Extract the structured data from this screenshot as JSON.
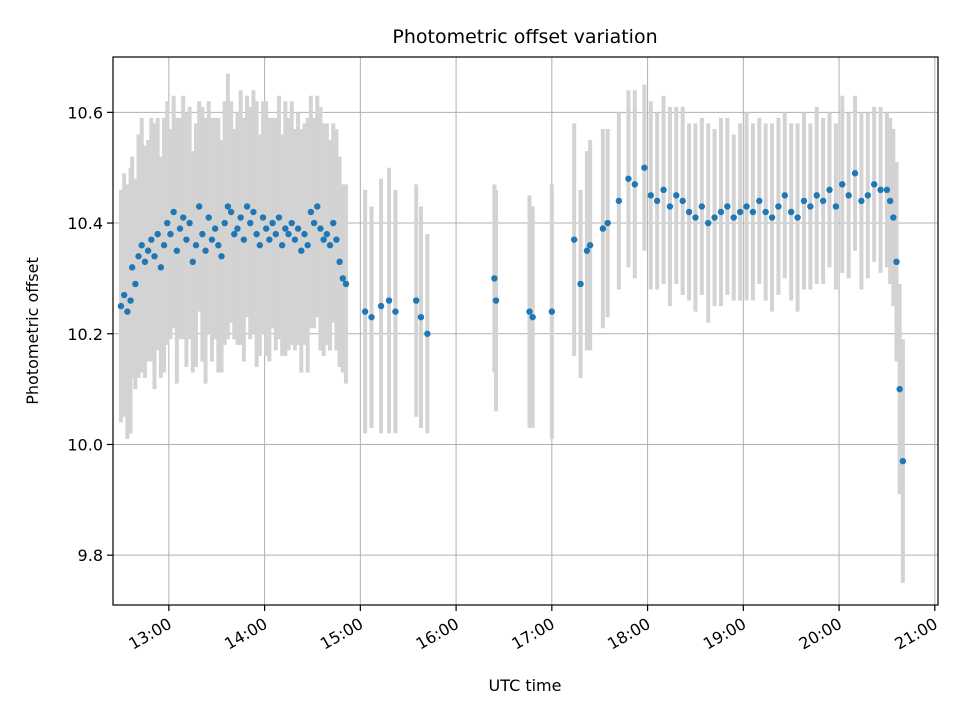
{
  "chart_data": {
    "type": "scatter",
    "title": "Photometric offset variation",
    "xlabel": "UTC time",
    "ylabel": "Photometric offset",
    "xlim": [
      "12:25",
      "21:02"
    ],
    "ylim": [
      9.71,
      10.7
    ],
    "grid": true,
    "x_ticks": [
      "13:00",
      "14:00",
      "15:00",
      "16:00",
      "17:00",
      "18:00",
      "19:00",
      "20:00",
      "21:00"
    ],
    "y_ticks": [
      9.8,
      10.0,
      10.2,
      10.4,
      10.6
    ],
    "colors": {
      "points": "#1f77b4",
      "error_bars": "#d3d3d3",
      "grid": "#b0b0b0"
    },
    "series": [
      {
        "x": [
          "12:30",
          "12:32",
          "12:34",
          "12:36",
          "12:37",
          "12:39",
          "12:41",
          "12:43",
          "12:45",
          "12:47",
          "12:49",
          "12:51",
          "12:53",
          "12:55",
          "12:57",
          "12:59",
          "13:01",
          "13:03",
          "13:05",
          "13:07",
          "13:09",
          "13:11",
          "13:13",
          "13:15",
          "13:17",
          "13:19",
          "13:21",
          "13:23",
          "13:25",
          "13:27",
          "13:29",
          "13:31",
          "13:33",
          "13:35",
          "13:37",
          "13:39",
          "13:41",
          "13:43",
          "13:45",
          "13:47",
          "13:49",
          "13:51",
          "13:53",
          "13:55",
          "13:57",
          "13:59",
          "14:01",
          "14:03",
          "14:05",
          "14:07",
          "14:09",
          "14:11",
          "14:13",
          "14:15",
          "14:17",
          "14:19",
          "14:21",
          "14:23",
          "14:25",
          "14:27",
          "14:29",
          "14:31",
          "14:33",
          "14:35",
          "14:37",
          "14:39",
          "14:41",
          "14:43",
          "14:45",
          "14:47",
          "14:49",
          "14:51",
          "15:03",
          "15:07",
          "15:13",
          "15:18",
          "15:22",
          "15:35",
          "15:38",
          "15:42",
          "16:24",
          "16:25",
          "16:46",
          "16:48",
          "17:00",
          "17:14",
          "17:18",
          "17:22",
          "17:24",
          "17:32",
          "17:35",
          "17:42",
          "17:48",
          "17:52",
          "17:58",
          "18:02",
          "18:06",
          "18:10",
          "18:14",
          "18:18",
          "18:22",
          "18:26",
          "18:30",
          "18:34",
          "18:38",
          "18:42",
          "18:46",
          "18:50",
          "18:54",
          "18:58",
          "19:02",
          "19:06",
          "19:10",
          "19:14",
          "19:18",
          "19:22",
          "19:26",
          "19:30",
          "19:34",
          "19:38",
          "19:42",
          "19:46",
          "19:50",
          "19:54",
          "19:58",
          "20:02",
          "20:06",
          "20:10",
          "20:14",
          "20:18",
          "20:22",
          "20:26",
          "20:30",
          "20:32",
          "20:34",
          "20:36",
          "20:38",
          "20:40"
        ],
        "y": [
          10.25,
          10.27,
          10.24,
          10.26,
          10.32,
          10.29,
          10.34,
          10.36,
          10.33,
          10.35,
          10.37,
          10.34,
          10.38,
          10.32,
          10.36,
          10.4,
          10.38,
          10.42,
          10.35,
          10.39,
          10.41,
          10.37,
          10.4,
          10.33,
          10.36,
          10.43,
          10.38,
          10.35,
          10.41,
          10.37,
          10.39,
          10.36,
          10.34,
          10.4,
          10.43,
          10.42,
          10.38,
          10.39,
          10.41,
          10.37,
          10.43,
          10.4,
          10.42,
          10.38,
          10.36,
          10.41,
          10.39,
          10.37,
          10.4,
          10.38,
          10.41,
          10.36,
          10.39,
          10.38,
          10.4,
          10.37,
          10.39,
          10.35,
          10.38,
          10.36,
          10.42,
          10.4,
          10.43,
          10.39,
          10.37,
          10.38,
          10.36,
          10.4,
          10.37,
          10.33,
          10.3,
          10.29,
          10.24,
          10.23,
          10.25,
          10.26,
          10.24,
          10.26,
          10.23,
          10.2,
          10.3,
          10.26,
          10.24,
          10.23,
          10.24,
          10.37,
          10.29,
          10.35,
          10.36,
          10.39,
          10.4,
          10.44,
          10.48,
          10.47,
          10.5,
          10.45,
          10.44,
          10.46,
          10.43,
          10.45,
          10.44,
          10.42,
          10.41,
          10.43,
          10.4,
          10.41,
          10.42,
          10.43,
          10.41,
          10.42,
          10.43,
          10.42,
          10.44,
          10.42,
          10.41,
          10.43,
          10.45,
          10.42,
          10.41,
          10.44,
          10.43,
          10.45,
          10.44,
          10.46,
          10.43,
          10.47,
          10.45,
          10.49,
          10.44,
          10.45,
          10.47,
          10.46,
          10.46,
          10.44,
          10.41,
          10.33,
          10.1,
          9.97
        ],
        "err": [
          0.21,
          0.22,
          0.23,
          0.24,
          0.2,
          0.19,
          0.22,
          0.23,
          0.21,
          0.2,
          0.22,
          0.24,
          0.21,
          0.2,
          0.23,
          0.22,
          0.19,
          0.21,
          0.24,
          0.2,
          0.22,
          0.23,
          0.21,
          0.2,
          0.22,
          0.19,
          0.23,
          0.24,
          0.21,
          0.22,
          0.2,
          0.23,
          0.21,
          0.22,
          0.24,
          0.2,
          0.19,
          0.21,
          0.23,
          0.22,
          0.2,
          0.21,
          0.22,
          0.24,
          0.2,
          0.21,
          0.23,
          0.22,
          0.19,
          0.21,
          0.22,
          0.2,
          0.23,
          0.21,
          0.22,
          0.2,
          0.21,
          0.22,
          0.2,
          0.23,
          0.21,
          0.19,
          0.2,
          0.22,
          0.21,
          0.2,
          0.19,
          0.18,
          0.2,
          0.19,
          0.17,
          0.18,
          0.22,
          0.2,
          0.23,
          0.24,
          0.22,
          0.21,
          0.2,
          0.18,
          0.17,
          0.2,
          0.21,
          0.2,
          0.23,
          0.21,
          0.17,
          0.18,
          0.19,
          0.18,
          0.17,
          0.16,
          0.16,
          0.17,
          0.15,
          0.17,
          0.16,
          0.17,
          0.18,
          0.16,
          0.17,
          0.16,
          0.17,
          0.16,
          0.18,
          0.16,
          0.17,
          0.16,
          0.15,
          0.16,
          0.17,
          0.16,
          0.15,
          0.16,
          0.17,
          0.16,
          0.15,
          0.16,
          0.17,
          0.16,
          0.15,
          0.16,
          0.15,
          0.14,
          0.15,
          0.16,
          0.15,
          0.14,
          0.16,
          0.15,
          0.14,
          0.15,
          0.14,
          0.15,
          0.16,
          0.18,
          0.19,
          0.22
        ]
      }
    ]
  }
}
